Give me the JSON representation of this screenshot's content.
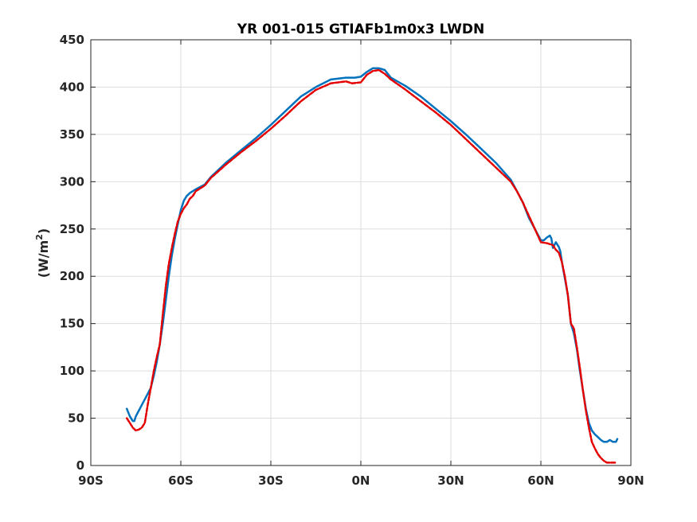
{
  "chart_data": {
    "type": "line",
    "title": "YR 001-015 GTIAFb1m0x3 LWDN",
    "xlabel": "",
    "ylabel": "(W/m2)",
    "ylabel_main": "(W/m",
    "ylabel_sup": "2",
    "ylabel_close": ")",
    "xlim": [
      -90,
      90
    ],
    "ylim": [
      0,
      450
    ],
    "x_ticks": [
      -90,
      -60,
      -30,
      0,
      30,
      60,
      90
    ],
    "x_tick_labels": [
      "90S",
      "60S",
      "30S",
      "0N",
      "30N",
      "60N",
      "90N"
    ],
    "y_ticks": [
      0,
      50,
      100,
      150,
      200,
      250,
      300,
      350,
      400,
      450
    ],
    "y_tick_labels": [
      "0",
      "50",
      "100",
      "150",
      "200",
      "250",
      "300",
      "350",
      "400",
      "450"
    ],
    "grid": true,
    "series": [
      {
        "color": "#0072bd",
        "style": "solid",
        "x": [
          -78,
          -77,
          -76,
          -75.5,
          -75,
          -74,
          -73,
          -72,
          -71,
          -70,
          -69,
          -68,
          -67,
          -66,
          -65,
          -64,
          -63,
          -62,
          -61,
          -60,
          -59,
          -58,
          -57,
          -56,
          -55,
          -52,
          -50,
          -45,
          -40,
          -35,
          -30,
          -25,
          -20,
          -15,
          -10,
          -5,
          -2,
          0,
          2,
          4,
          5,
          6,
          8,
          10,
          15,
          20,
          25,
          30,
          35,
          40,
          45,
          50,
          52,
          54,
          56,
          58,
          60,
          61,
          62,
          63,
          63.5,
          64,
          65,
          66,
          66.5,
          67,
          68,
          69,
          70,
          71,
          72,
          73,
          74,
          75,
          76,
          77,
          78,
          79,
          80,
          81,
          82,
          83,
          84,
          85,
          85.5
        ],
        "y": [
          60,
          52,
          47,
          47,
          52,
          58,
          64,
          70,
          76,
          82,
          95,
          110,
          128,
          150,
          175,
          200,
          222,
          240,
          255,
          270,
          280,
          285,
          288,
          290,
          292,
          297,
          305,
          320,
          333,
          346,
          360,
          375,
          390,
          400,
          408,
          410,
          410,
          411,
          416,
          420,
          420,
          420,
          418,
          410,
          401,
          390,
          377,
          364,
          350,
          335,
          320,
          302,
          290,
          278,
          262,
          250,
          238,
          238,
          241,
          243,
          240,
          230,
          236,
          231,
          226,
          215,
          198,
          180,
          150,
          140,
          123,
          100,
          80,
          60,
          45,
          37,
          33,
          30,
          27,
          25,
          25,
          27,
          25,
          25,
          28
        ]
      },
      {
        "color": "#e50000",
        "style": "dashed",
        "x": [
          -78,
          -77,
          -76,
          -75,
          -74,
          -73,
          -72,
          -71,
          -70,
          -69,
          -68,
          -67,
          -66,
          -65,
          -64,
          -63,
          -62,
          -61,
          -60,
          -59,
          -58,
          -57,
          -56,
          -55,
          -52,
          -50,
          -45,
          -40,
          -35,
          -30,
          -25,
          -20,
          -15,
          -10,
          -5,
          -3,
          0,
          2,
          4,
          6,
          8,
          10,
          15,
          20,
          25,
          30,
          35,
          40,
          45,
          50,
          52,
          54,
          56,
          58,
          60,
          62,
          63,
          64,
          65,
          66,
          67,
          68,
          69,
          70,
          71,
          72,
          73,
          74,
          75,
          76,
          77,
          78,
          79,
          80,
          81,
          82,
          83,
          84,
          85
        ],
        "y": [
          50,
          45,
          40,
          37,
          38,
          40,
          45,
          65,
          82,
          100,
          115,
          128,
          160,
          190,
          213,
          230,
          245,
          258,
          266,
          272,
          276,
          282,
          285,
          290,
          296,
          304,
          318,
          331,
          343,
          356,
          370,
          385,
          397,
          404,
          406,
          404,
          405,
          413,
          417,
          418,
          414,
          408,
          397,
          385,
          373,
          360,
          345,
          330,
          315,
          300,
          290,
          278,
          264,
          250,
          236,
          235,
          234,
          233,
          228,
          225,
          215,
          200,
          180,
          150,
          145,
          125,
          103,
          80,
          58,
          40,
          25,
          18,
          12,
          8,
          5,
          3,
          3,
          3,
          3
        ]
      }
    ]
  }
}
